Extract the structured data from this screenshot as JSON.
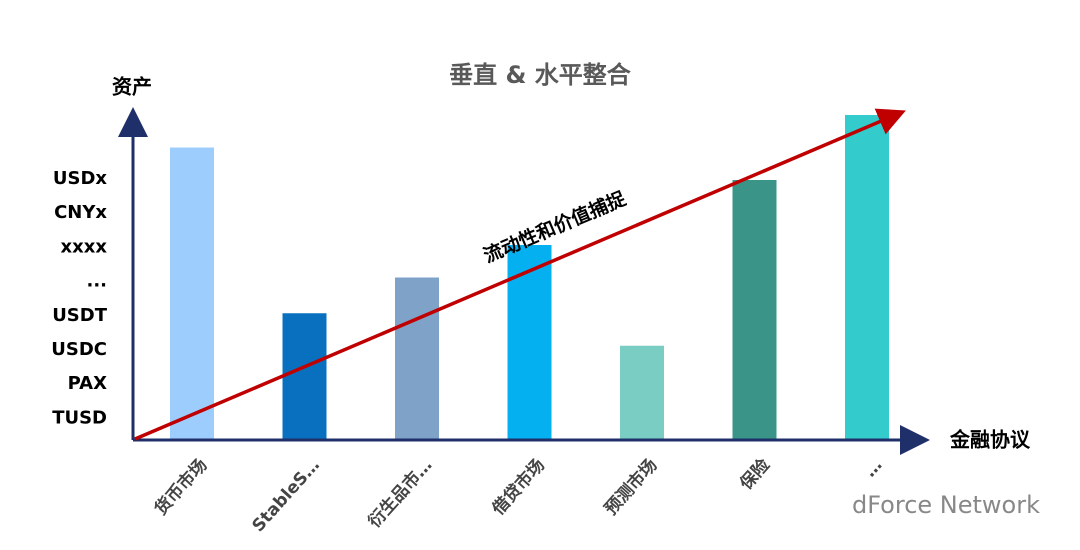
{
  "chart_data": {
    "type": "bar",
    "title": "垂直 & 水平整合",
    "y_axis_label": "资产",
    "x_axis_label": "金融协议",
    "y_labels": [
      "USDx",
      "CNYx",
      "xxxx",
      "...",
      "USDT",
      "USDC",
      "PAX",
      "TUSD"
    ],
    "categories": [
      "货币市场",
      "StableS…",
      "衍生品市…",
      "借贷市场",
      "预测市场",
      "保险",
      "…"
    ],
    "values": [
      90,
      39,
      50,
      60,
      29,
      80,
      100
    ],
    "colors": [
      "#9dcdfd",
      "#0870be",
      "#7fa2c9",
      "#04b0ef",
      "#79cdc2",
      "#3a9588",
      "#33cbcb"
    ],
    "ylim": [
      0,
      100
    ],
    "annotation": "流动性和价值捕捉",
    "watermark": "dForce Network"
  }
}
